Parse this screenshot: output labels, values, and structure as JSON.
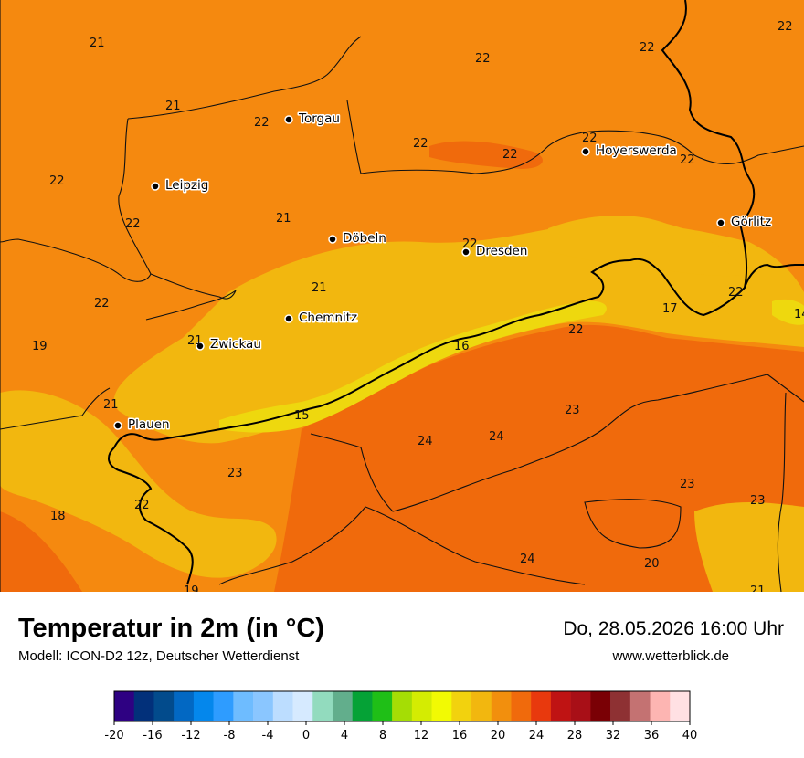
{
  "title": "Temperatur in 2m (in °C)",
  "subtitle": "Modell: ICON-D2 12z, Deutscher Wetterdienst",
  "datetime": "Do, 28.05.2026 16:00 Uhr",
  "website": "www.wetterblick.de",
  "colors": {
    "base": "#f5890f",
    "warm": "#f06a0c",
    "mild": "#f2b70f",
    "cool": "#eed80e",
    "border": "#000000",
    "region": "#111111"
  },
  "cities": [
    {
      "name": "Torgau"
    },
    {
      "name": "Leipzig"
    },
    {
      "name": "Hoyerswerda"
    },
    {
      "name": "Görlitz"
    },
    {
      "name": "Döbeln"
    },
    {
      "name": "Dresden"
    },
    {
      "name": "Chemnitz"
    },
    {
      "name": "Zwickau"
    },
    {
      "name": "Plauen"
    }
  ],
  "values": [
    "21",
    "22",
    "22",
    "22",
    "21",
    "22",
    "22",
    "22",
    "22",
    "22",
    "22",
    "22",
    "21",
    "22",
    "22",
    "21",
    "17",
    "22",
    "14",
    "19",
    "21",
    "22",
    "16",
    "21",
    "15",
    "23",
    "24",
    "24",
    "23",
    "23",
    "18",
    "22",
    "23",
    "24",
    "20",
    "19",
    "21"
  ],
  "legend": {
    "colors": [
      "#2e0182",
      "#02307a",
      "#024b8c",
      "#0268c3",
      "#0487ec",
      "#2e9cff",
      "#6ebcff",
      "#8ac6ff",
      "#bcddff",
      "#d6eaff",
      "#92dbbe",
      "#62ae8c",
      "#05a236",
      "#1fbf17",
      "#a5dd05",
      "#d4ec02",
      "#f2fa03",
      "#f2d20e",
      "#f2b70f",
      "#f28f0d",
      "#f06a0c",
      "#e8390d",
      "#bf1313",
      "#a80f17",
      "#7a0005",
      "#8e3133",
      "#c47272",
      "#fdb5b2",
      "#ffe0e3"
    ],
    "ticks": [
      "-20",
      "-16",
      "-12",
      "-8",
      "-4",
      "0",
      "4",
      "8",
      "12",
      "16",
      "20",
      "24",
      "28",
      "32",
      "36",
      "40"
    ]
  }
}
